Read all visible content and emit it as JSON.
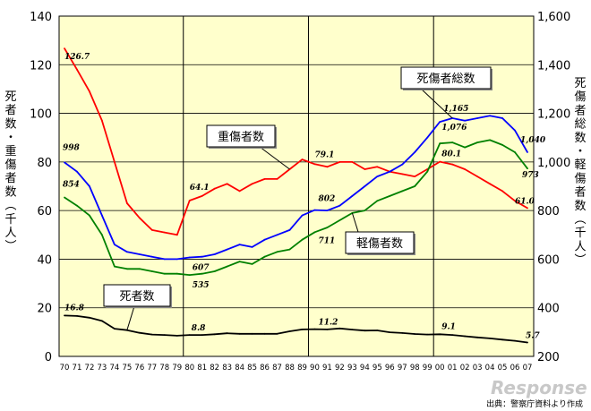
{
  "chart_data": {
    "type": "line",
    "x": [
      "70",
      "71",
      "72",
      "73",
      "74",
      "75",
      "76",
      "77",
      "78",
      "79",
      "80",
      "81",
      "82",
      "83",
      "84",
      "85",
      "86",
      "87",
      "88",
      "89",
      "90",
      "91",
      "92",
      "93",
      "94",
      "95",
      "96",
      "97",
      "98",
      "99",
      "00",
      "01",
      "02",
      "03",
      "04",
      "05",
      "06",
      "07"
    ],
    "y_left": {
      "label": "死者数・重傷者数（千人）",
      "ylim": [
        0,
        140
      ],
      "ticks": [
        "0",
        "20",
        "40",
        "60",
        "80",
        "100",
        "120",
        "140"
      ]
    },
    "y_right": {
      "label": "死傷者総数・軽傷者数（千人）",
      "ylim": [
        200,
        1600
      ],
      "ticks": [
        "200",
        "400",
        "600",
        "800",
        "1,000",
        "1,200",
        "1,400",
        "1,600"
      ]
    },
    "series": [
      {
        "name": "重傷者数",
        "axis": "left",
        "color": "#ff0000",
        "values": [
          126.7,
          118,
          109,
          97,
          80,
          63,
          57,
          52,
          51,
          50,
          64.1,
          66,
          69,
          71,
          68,
          71,
          73,
          73,
          77,
          81,
          79.1,
          78,
          80,
          80,
          77,
          78,
          76,
          75,
          74,
          77,
          80.1,
          79,
          77,
          74,
          71,
          68,
          64,
          61.0
        ]
      },
      {
        "name": "死傷者総数",
        "axis": "right",
        "color": "#0000ff",
        "values": [
          998,
          960,
          900,
          780,
          660,
          630,
          620,
          610,
          600,
          600,
          607,
          610,
          620,
          640,
          660,
          650,
          680,
          700,
          720,
          780,
          802,
          800,
          820,
          860,
          900,
          940,
          960,
          990,
          1040,
          1100,
          1165,
          1180,
          1170,
          1180,
          1190,
          1180,
          1130,
          1040
        ]
      },
      {
        "name": "軽傷者数",
        "axis": "right",
        "color": "#008000",
        "values": [
          854,
          820,
          780,
          700,
          570,
          560,
          560,
          550,
          540,
          540,
          535,
          540,
          550,
          570,
          590,
          580,
          610,
          630,
          640,
          680,
          711,
          730,
          760,
          790,
          800,
          840,
          860,
          880,
          900,
          960,
          1076,
          1080,
          1060,
          1080,
          1090,
          1070,
          1040,
          973
        ]
      },
      {
        "name": "死者数",
        "axis": "left",
        "color": "#000000",
        "values": [
          16.8,
          16.6,
          15.9,
          14.6,
          11.4,
          10.8,
          9.7,
          9.0,
          8.8,
          8.5,
          8.8,
          8.8,
          9.1,
          9.5,
          9.3,
          9.3,
          9.3,
          9.3,
          10.3,
          11.1,
          11.2,
          11.1,
          11.5,
          11.0,
          10.6,
          10.7,
          9.9,
          9.6,
          9.2,
          9.0,
          9.1,
          8.8,
          8.3,
          7.8,
          7.4,
          6.9,
          6.4,
          5.7
        ]
      }
    ],
    "data_labels": [
      {
        "series": "重傷者数",
        "x": "70",
        "text": "126.7"
      },
      {
        "series": "重傷者数",
        "x": "80",
        "text": "64.1"
      },
      {
        "series": "重傷者数",
        "x": "90",
        "text": "79.1"
      },
      {
        "series": "重傷者数",
        "x": "00",
        "text": "80.1"
      },
      {
        "series": "重傷者数",
        "x": "07",
        "text": "61.0"
      },
      {
        "series": "死傷者総数",
        "x": "70",
        "text": "998"
      },
      {
        "series": "死傷者総数",
        "x": "80",
        "text": "607"
      },
      {
        "series": "死傷者総数",
        "x": "90",
        "text": "802"
      },
      {
        "series": "死傷者総数",
        "x": "00",
        "text": "1,165"
      },
      {
        "series": "死傷者総数",
        "x": "07",
        "text": "1,040"
      },
      {
        "series": "軽傷者数",
        "x": "70",
        "text": "854"
      },
      {
        "series": "軽傷者数",
        "x": "80",
        "text": "535"
      },
      {
        "series": "軽傷者数",
        "x": "90",
        "text": "711"
      },
      {
        "series": "軽傷者数",
        "x": "00",
        "text": "1,076"
      },
      {
        "series": "軽傷者数",
        "x": "07",
        "text": "973"
      },
      {
        "series": "死者数",
        "x": "70",
        "text": "16.8"
      },
      {
        "series": "死者数",
        "x": "80",
        "text": "8.8"
      },
      {
        "series": "死者数",
        "x": "90",
        "text": "11.2"
      },
      {
        "series": "死者数",
        "x": "00",
        "text": "9.1"
      },
      {
        "series": "死者数",
        "x": "07",
        "text": "5.7"
      }
    ],
    "callouts": [
      "重傷者数",
      "死傷者総数",
      "軽傷者数",
      "死者数"
    ],
    "plot_background": "#ffffcc",
    "vertical_gridlines_at": [
      "80",
      "90",
      "00"
    ],
    "grid": true
  },
  "source_note": "出典：警察庁資料より作成",
  "watermark": "Response"
}
